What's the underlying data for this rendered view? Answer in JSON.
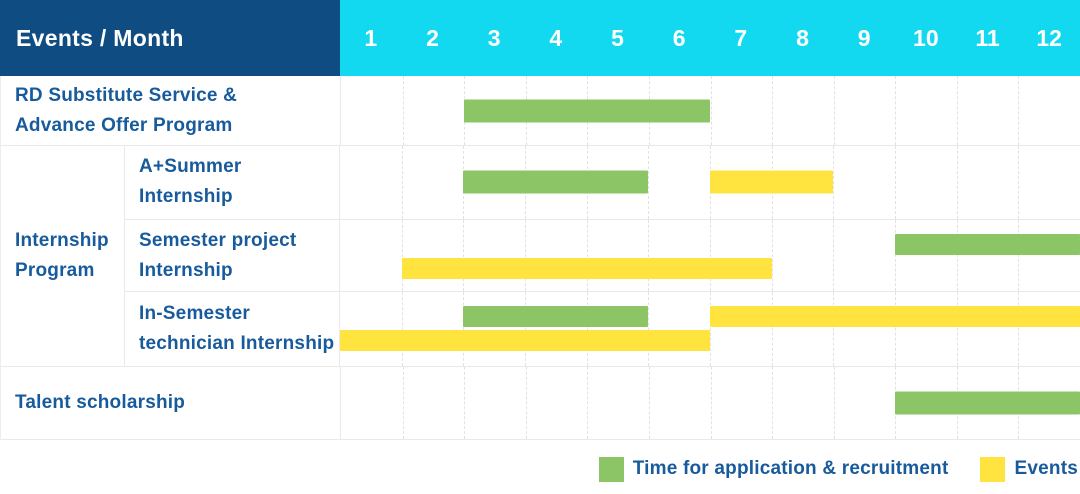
{
  "header": {
    "title": "Events / Month",
    "months": [
      "1",
      "2",
      "3",
      "4",
      "5",
      "6",
      "7",
      "8",
      "9",
      "10",
      "11",
      "12"
    ]
  },
  "colors": {
    "header_bg": "#0F4C81",
    "months_bg": "#12D9F0",
    "label_text": "#185B9C",
    "application_green": "#8CC566",
    "events_yellow": "#FFE440"
  },
  "legend": {
    "items": [
      {
        "kind": "application",
        "label": "Time for application & recruitment",
        "color": "#8CC566"
      },
      {
        "kind": "events",
        "label": "Events",
        "color": "#FFE440"
      }
    ]
  },
  "chart_data": {
    "type": "bar",
    "subtype": "gantt-timeline",
    "title": "Events / Month",
    "x_unit": "month",
    "x_range": [
      1,
      12
    ],
    "grid": "dashed-vertical-per-month",
    "legend_position": "bottom-right",
    "group": {
      "label_lines": [
        "Internship",
        "Program"
      ]
    },
    "rows": [
      {
        "id": "rd-substitute-service",
        "label_lines": [
          "RD Substitute Service &",
          "Advance Offer Program"
        ],
        "bars": [
          {
            "kind": "application",
            "start_month": 3,
            "end_month": 6,
            "lane": "center"
          }
        ]
      },
      {
        "id": "a-plus-summer-internship",
        "group": "Internship Program",
        "label_lines": [
          "A+Summer",
          "Internship"
        ],
        "bars": [
          {
            "kind": "application",
            "start_month": 3,
            "end_month": 5,
            "lane": "center"
          },
          {
            "kind": "events",
            "start_month": 7,
            "end_month": 8,
            "lane": "center"
          }
        ]
      },
      {
        "id": "semester-project-internship",
        "group": "Internship Program",
        "label_lines": [
          "Semester project",
          "Internship"
        ],
        "bars": [
          {
            "kind": "application",
            "start_month": 10,
            "end_month": 12,
            "lane": "upper"
          },
          {
            "kind": "events",
            "start_month": 2,
            "end_month": 7,
            "lane": "lower"
          }
        ]
      },
      {
        "id": "in-semester-technician-internship",
        "group": "Internship Program",
        "label_lines": [
          "In-Semester",
          "technician Internship"
        ],
        "bars": [
          {
            "kind": "application",
            "start_month": 3,
            "end_month": 5,
            "lane": "upper"
          },
          {
            "kind": "events",
            "start_month": 7,
            "end_month": 12,
            "lane": "upper"
          },
          {
            "kind": "events",
            "start_month": 1,
            "end_month": 6,
            "lane": "lower"
          }
        ]
      },
      {
        "id": "talent-scholarship",
        "label_lines": [
          "Talent scholarship"
        ],
        "bars": [
          {
            "kind": "application",
            "start_month": 10,
            "end_month": 12,
            "lane": "center"
          }
        ]
      }
    ]
  }
}
